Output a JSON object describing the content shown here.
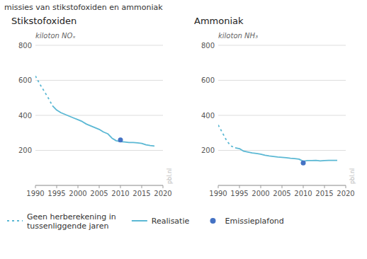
{
  "title": "missies van stikstofoxiden en ammoniak",
  "chart_data": [
    {
      "type": "line",
      "title": "Stikstofoxiden",
      "y_label": "kiloton NOₓ",
      "annotations": [
        "pbl.nl"
      ],
      "xlim": [
        1990,
        2020
      ],
      "xticks": [
        1990,
        1995,
        2000,
        2005,
        2010,
        2015,
        2020
      ],
      "ylim": [
        0,
        800
      ],
      "yticks": [
        {
          "value": 0,
          "label": null
        },
        200,
        400,
        600,
        800
      ],
      "grid": true,
      "legend": "bottom",
      "series": [
        {
          "name": "Geen herberekening in tussenliggende jaren",
          "type": "line",
          "line_style": "dashed",
          "color": "#5BB8D4",
          "x": [
            1990,
            1991,
            1992,
            1993,
            1994
          ],
          "values": [
            625,
            580,
            540,
            500,
            455
          ]
        },
        {
          "name": "Realisatie",
          "type": "line",
          "line_style": "solid",
          "color": "#5BB8D4",
          "x": [
            1994,
            1995,
            1996,
            1997,
            1998,
            1999,
            2000,
            2001,
            2002,
            2003,
            2004,
            2005,
            2006,
            2007,
            2008,
            2009,
            2010,
            2011,
            2012,
            2013,
            2014,
            2015,
            2016,
            2017,
            2018
          ],
          "values": [
            455,
            430,
            415,
            405,
            395,
            385,
            375,
            365,
            350,
            340,
            330,
            320,
            305,
            295,
            270,
            255,
            250,
            248,
            245,
            245,
            243,
            240,
            232,
            228,
            225
          ]
        },
        {
          "name": "Emissieplafond",
          "type": "scatter",
          "marker": "circle",
          "color": "#4472C4",
          "x": [
            2010
          ],
          "values": [
            260
          ]
        }
      ]
    },
    {
      "type": "line",
      "title": "Ammoniak",
      "y_label": "kiloton NH₃",
      "annotations": [
        "pbl.nl"
      ],
      "xlim": [
        1990,
        2020
      ],
      "xticks": [
        1990,
        1995,
        2000,
        2005,
        2010,
        2015,
        2020
      ],
      "ylim": [
        0,
        800
      ],
      "yticks": [
        {
          "value": 0,
          "label": null
        },
        200,
        400,
        600,
        800
      ],
      "grid": true,
      "series": [
        {
          "type": "line",
          "line_style": "dashed",
          "color": "#5BB8D4",
          "x": [
            1990,
            1991,
            1992,
            1993,
            1994
          ],
          "values": [
            345,
            300,
            255,
            225,
            215
          ]
        },
        {
          "type": "line",
          "line_style": "solid",
          "color": "#5BB8D4",
          "x": [
            1994,
            1995,
            1996,
            1997,
            1998,
            1999,
            2000,
            2001,
            2002,
            2003,
            2004,
            2005,
            2006,
            2007,
            2008,
            2009,
            2010,
            2011,
            2012,
            2013,
            2014,
            2015,
            2016,
            2017,
            2018
          ],
          "values": [
            215,
            210,
            195,
            190,
            185,
            182,
            178,
            172,
            168,
            165,
            162,
            160,
            158,
            155,
            153,
            150,
            138,
            142,
            142,
            143,
            140,
            142,
            143,
            143,
            143
          ]
        },
        {
          "type": "scatter",
          "marker": "circle",
          "color": "#4472C4",
          "x": [
            2010
          ],
          "values": [
            128
          ]
        }
      ]
    }
  ]
}
